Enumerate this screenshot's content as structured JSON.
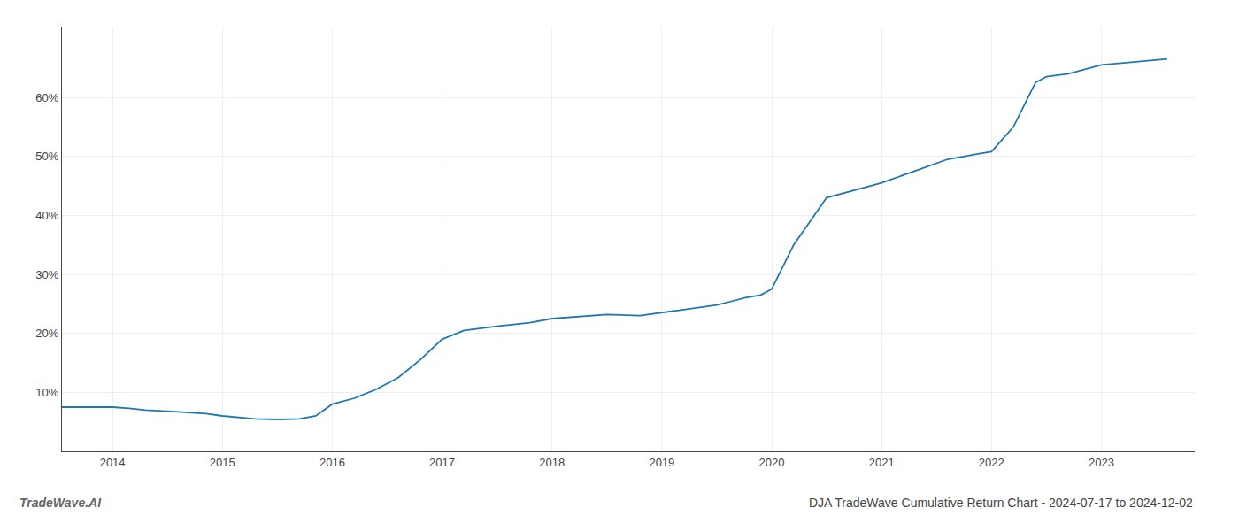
{
  "chart_data": {
    "type": "line",
    "title": "DJA TradeWave Cumulative Return Chart - 2024-07-17 to 2024-12-02",
    "annotations": [
      "TradeWave.AI"
    ],
    "color": "#2176ae",
    "grid": true,
    "x": [
      2013.54,
      2014.0,
      2014.15,
      2014.3,
      2014.5,
      2014.7,
      2014.85,
      2015.0,
      2015.15,
      2015.3,
      2015.5,
      2015.7,
      2015.85,
      2016.0,
      2016.2,
      2016.4,
      2016.6,
      2016.8,
      2017.0,
      2017.2,
      2017.5,
      2017.8,
      2018.0,
      2018.2,
      2018.5,
      2018.8,
      2019.0,
      2019.2,
      2019.5,
      2019.65,
      2019.75,
      2019.9,
      2020.0,
      2020.2,
      2020.5,
      2020.8,
      2021.0,
      2021.3,
      2021.6,
      2021.9,
      2022.0,
      2022.2,
      2022.4,
      2022.5,
      2022.7,
      2023.0,
      2023.3,
      2023.6
    ],
    "values": [
      7.5,
      7.5,
      7.3,
      7.0,
      6.8,
      6.6,
      6.4,
      6.0,
      5.7,
      5.5,
      5.4,
      5.5,
      6.0,
      8.0,
      9.0,
      10.5,
      12.5,
      15.5,
      19.0,
      20.5,
      21.2,
      21.8,
      22.5,
      22.8,
      23.2,
      23.0,
      23.5,
      24.0,
      24.8,
      25.5,
      26.0,
      26.5,
      27.5,
      35.0,
      43.0,
      44.5,
      45.5,
      47.5,
      49.5,
      50.5,
      50.8,
      55.0,
      62.5,
      63.5,
      64.0,
      65.5,
      66.0,
      66.5
    ],
    "xlim": [
      2013.54,
      2023.85
    ],
    "ylim": [
      0,
      72
    ],
    "xticks": [
      2014,
      2015,
      2016,
      2017,
      2018,
      2019,
      2020,
      2021,
      2022,
      2023
    ],
    "yticks": [
      {
        "value": 10,
        "label": "10%"
      },
      {
        "value": 20,
        "label": "20%"
      },
      {
        "value": 30,
        "label": "30%"
      },
      {
        "value": 40,
        "label": "40%"
      },
      {
        "value": 50,
        "label": "50%"
      },
      {
        "value": 60,
        "label": "60%"
      }
    ]
  }
}
